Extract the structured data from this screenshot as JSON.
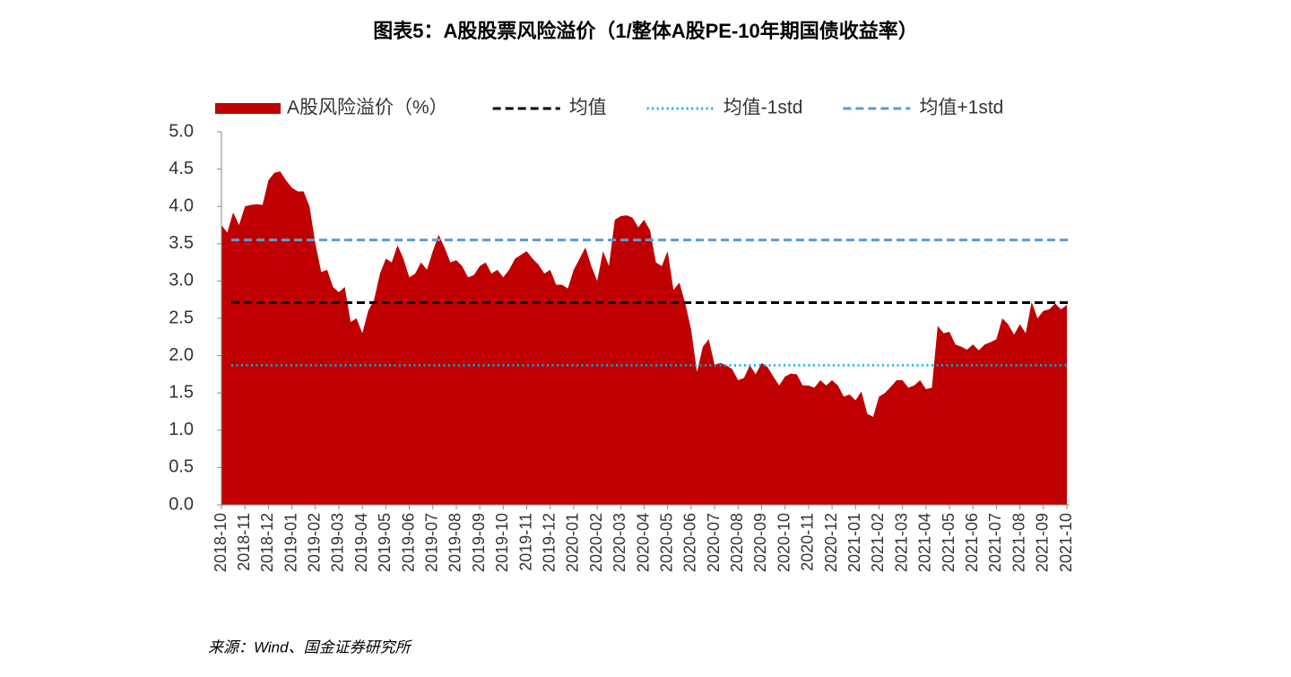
{
  "chart_data": {
    "type": "area",
    "title": "图表5：A股股票风险溢价（1/整体A股PE-10年期国债收益率）",
    "source": "来源：Wind、国金证券研究所",
    "categories": [
      "2018-10",
      null,
      null,
      null,
      "2018-11",
      null,
      null,
      null,
      "2018-12",
      null,
      null,
      null,
      "2019-01",
      null,
      null,
      null,
      "2019-02",
      null,
      null,
      null,
      "2019-03",
      null,
      null,
      null,
      "2019-04",
      null,
      null,
      null,
      "2019-05",
      null,
      null,
      null,
      "2019-06",
      null,
      null,
      null,
      "2019-07",
      null,
      null,
      null,
      "2019-08",
      null,
      null,
      null,
      "2019-09",
      null,
      null,
      null,
      "2019-10",
      null,
      null,
      null,
      "2019-11",
      null,
      null,
      null,
      "2019-12",
      null,
      null,
      null,
      "2020-01",
      null,
      null,
      null,
      "2020-02",
      null,
      null,
      null,
      "2020-03",
      null,
      null,
      null,
      "2020-04",
      null,
      null,
      null,
      "2020-05",
      null,
      null,
      null,
      "2020-06",
      null,
      null,
      null,
      "2020-07",
      null,
      null,
      null,
      "2020-08",
      null,
      null,
      null,
      "2020-09",
      null,
      null,
      null,
      "2020-10",
      null,
      null,
      null,
      "2020-11",
      null,
      null,
      null,
      "2020-12",
      null,
      null,
      null,
      "2021-01",
      null,
      null,
      null,
      "2021-02",
      null,
      null,
      null,
      "2021-03",
      null,
      null,
      null,
      "2021-04",
      null,
      null,
      null,
      "2021-05",
      null,
      null,
      null,
      "2021-06",
      null,
      null,
      null,
      "2021-07",
      null,
      null,
      null,
      "2021-08",
      null,
      null,
      null,
      "2021-09",
      null,
      null,
      null,
      "2021-10"
    ],
    "series": [
      {
        "name": "A股风险溢价（%）",
        "color": "#c00000",
        "values": [
          3.75,
          3.65,
          3.92,
          3.75,
          4.0,
          4.02,
          4.03,
          4.02,
          4.35,
          4.45,
          4.47,
          4.35,
          4.25,
          4.2,
          4.2,
          4.0,
          3.5,
          3.12,
          3.15,
          2.92,
          2.85,
          2.92,
          2.45,
          2.5,
          2.3,
          2.6,
          2.75,
          3.1,
          3.3,
          3.25,
          3.48,
          3.3,
          3.05,
          3.1,
          3.25,
          3.15,
          3.4,
          3.62,
          3.45,
          3.25,
          3.28,
          3.2,
          3.05,
          3.08,
          3.2,
          3.25,
          3.1,
          3.15,
          3.05,
          3.15,
          3.3,
          3.35,
          3.4,
          3.3,
          3.22,
          3.1,
          3.15,
          2.95,
          2.95,
          2.9,
          3.15,
          3.3,
          3.45,
          3.2,
          3.0,
          3.4,
          3.2,
          3.82,
          3.87,
          3.88,
          3.85,
          3.72,
          3.82,
          3.68,
          3.25,
          3.2,
          3.4,
          2.88,
          2.98,
          2.7,
          2.35,
          1.78,
          2.12,
          2.22,
          1.88,
          1.9,
          1.87,
          1.82,
          1.67,
          1.7,
          1.87,
          1.75,
          1.9,
          1.85,
          1.72,
          1.6,
          1.72,
          1.76,
          1.75,
          1.6,
          1.6,
          1.57,
          1.67,
          1.6,
          1.67,
          1.6,
          1.45,
          1.48,
          1.4,
          1.52,
          1.22,
          1.18,
          1.45,
          1.5,
          1.58,
          1.67,
          1.67,
          1.57,
          1.6,
          1.67,
          1.55,
          1.57,
          2.4,
          2.3,
          2.32,
          2.15,
          2.12,
          2.08,
          2.15,
          2.07,
          2.15,
          2.18,
          2.22,
          2.5,
          2.42,
          2.28,
          2.42,
          2.3,
          2.72,
          2.5,
          2.6,
          2.62,
          2.7,
          2.62,
          2.68
        ]
      }
    ],
    "reference_lines": [
      {
        "name": "均值",
        "color": "#000000",
        "value": 2.71,
        "style": "dashed"
      },
      {
        "name": "均值-1std",
        "color": "#00b0f0",
        "value": 1.87,
        "style": "dotted"
      },
      {
        "name": "均值+1std",
        "color": "#5b9bd5",
        "value": 3.55,
        "style": "dashed"
      }
    ],
    "ylim": [
      0,
      5
    ],
    "yticks": [
      {
        "value": 0,
        "label": "0.0"
      },
      {
        "value": 0.5,
        "label": "0.5"
      },
      {
        "value": 1,
        "label": "1.0"
      },
      {
        "value": 1.5,
        "label": "1.5"
      },
      {
        "value": 2,
        "label": "2.0"
      },
      {
        "value": 2.5,
        "label": "2.5"
      },
      {
        "value": 3,
        "label": "3.0"
      },
      {
        "value": 3.5,
        "label": "3.5"
      },
      {
        "value": 4,
        "label": "4.0"
      },
      {
        "value": 4.5,
        "label": "4.5"
      },
      {
        "value": 5,
        "label": "5.0"
      }
    ],
    "grid": false,
    "legend": "top"
  }
}
